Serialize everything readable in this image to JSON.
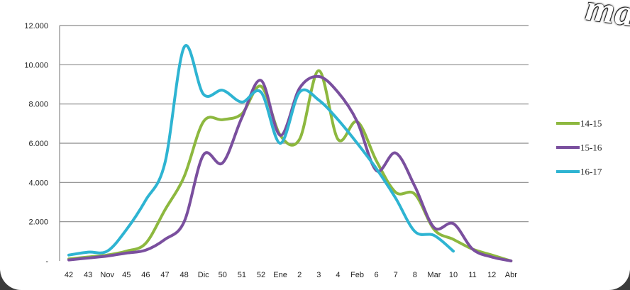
{
  "watermark": "ma",
  "chart_data": {
    "type": "line",
    "title": "",
    "xlabel": "",
    "ylabel": "",
    "ylim": [
      0,
      12000
    ],
    "y_ticks": [
      "-",
      "2.000",
      "4.000",
      "6.000",
      "8.000",
      "10.000",
      "12.000"
    ],
    "y_tick_values": [
      0,
      2000,
      4000,
      6000,
      8000,
      10000,
      12000
    ],
    "grid": true,
    "legend_position": "right",
    "categories": [
      "42",
      "43",
      "Nov",
      "45",
      "46",
      "47",
      "48",
      "Dic",
      "50",
      "51",
      "52",
      "Ene",
      "2",
      "3",
      "4",
      "Feb",
      "6",
      "7",
      "8",
      "Mar",
      "10",
      "11",
      "12",
      "Abr"
    ],
    "series": [
      {
        "name": "14-15",
        "color": "#8db83f",
        "values": [
          100,
          200,
          300,
          500,
          900,
          2600,
          4300,
          7100,
          7200,
          7500,
          8900,
          6400,
          6200,
          9700,
          6200,
          7100,
          5100,
          3500,
          3400,
          1600,
          1100,
          600,
          300,
          0
        ]
      },
      {
        "name": "15-16",
        "color": "#7a4f9e",
        "values": [
          50,
          150,
          250,
          400,
          550,
          1100,
          2000,
          5400,
          5000,
          7300,
          9200,
          6400,
          8800,
          9400,
          8600,
          7100,
          4600,
          5500,
          3800,
          1700,
          1900,
          600,
          200,
          0
        ]
      },
      {
        "name": "16-17",
        "color": "#2eb4d2",
        "values": [
          300,
          450,
          500,
          1600,
          3100,
          5000,
          10900,
          8500,
          8700,
          8100,
          8600,
          6000,
          8600,
          8200,
          7200,
          6000,
          4700,
          3200,
          1500,
          1300,
          500,
          null,
          null,
          null
        ]
      }
    ]
  }
}
